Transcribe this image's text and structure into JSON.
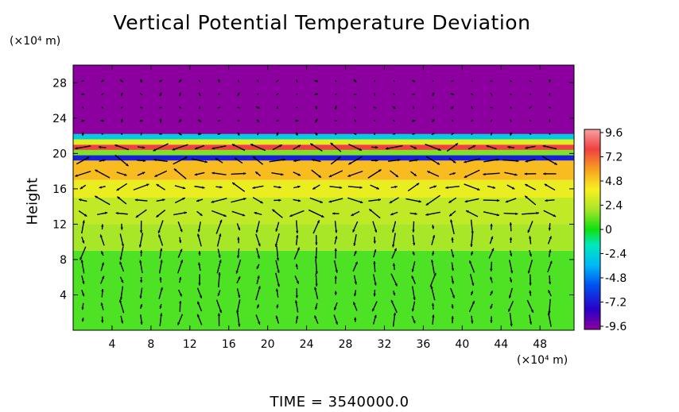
{
  "chart_data": {
    "type": "heatmap",
    "title": "Vertical Potential Temperature Deviation",
    "xlabel": "",
    "ylabel": "Height",
    "x_unit_label": "(×10⁴ m)",
    "y_unit_label": "(×10⁴ m)",
    "xlim": [
      0,
      51.5
    ],
    "ylim": [
      0,
      30
    ],
    "x_ticks": [
      "4",
      "8",
      "12",
      "16",
      "20",
      "24",
      "28",
      "32",
      "36",
      "40",
      "44",
      "48"
    ],
    "y_ticks": [
      "4",
      "8",
      "12",
      "16",
      "20",
      "24",
      "28"
    ],
    "colorbar": {
      "ticks": [
        "9.6",
        "7.2",
        "4.8",
        "2.4",
        "0",
        "-2.4",
        "-4.8",
        "-7.2",
        "-9.6"
      ],
      "range": [
        -9.6,
        9.6
      ]
    },
    "layers": [
      {
        "y_from": 0,
        "y_to": 9,
        "value": 0.6
      },
      {
        "y_from": 9,
        "y_to": 12,
        "value": 1.8
      },
      {
        "y_from": 12,
        "y_to": 15,
        "value": 2.3
      },
      {
        "y_from": 15,
        "y_to": 17,
        "value": 3.2
      },
      {
        "y_from": 17,
        "y_to": 19.2,
        "value": 4.8
      },
      {
        "y_from": 19.2,
        "y_to": 19.8,
        "value": -7.0
      },
      {
        "y_from": 19.8,
        "y_to": 20.4,
        "value": 1.2
      },
      {
        "y_from": 20.4,
        "y_to": 21.0,
        "value": 7.5
      },
      {
        "y_from": 21.0,
        "y_to": 21.6,
        "value": 3.0
      },
      {
        "y_from": 21.6,
        "y_to": 22.2,
        "value": -2.6
      },
      {
        "y_from": 22.2,
        "y_to": 30,
        "value": -10
      }
    ],
    "vector_field": {
      "x_spacing": 2,
      "y_spacing": 1.5,
      "note": "wind vectors overlaid"
    }
  },
  "footer": {
    "time_label": "TIME  =  3540000.0"
  },
  "colors": {
    "purple_top": "#9400a8",
    "green_low": "#20e020",
    "yellow_green": "#a8e628",
    "orange": "#f8b020"
  }
}
